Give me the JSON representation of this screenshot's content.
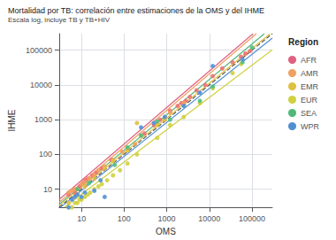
{
  "chart_data": {
    "type": "scatter",
    "title": "Mortalidad por TB: correlación entre estimaciones de la OMS y del IHME",
    "subtitle": "Escala log, incluye TB y TB+HIV",
    "xlabel": "OMS",
    "ylabel": "IHME",
    "log": true,
    "grid": true,
    "legend": "right",
    "legend_title": "Region",
    "xlim": [
      3,
      300000
    ],
    "ylim": [
      3,
      300000
    ],
    "xticks": [
      10,
      100,
      1000,
      10000,
      100000
    ],
    "yticks": [
      10,
      100,
      1000,
      10000,
      100000
    ],
    "series": [
      {
        "type": "line",
        "color": "#555555",
        "line_style": "dashed",
        "x": [
          3,
          300000
        ],
        "values": [
          3,
          300000
        ]
      },
      {
        "name": "AFR",
        "type": "line",
        "color": "#e06080",
        "line_style": "solid",
        "x": [
          3,
          106127.9
        ],
        "values": [
          5.0232,
          300000
        ]
      },
      {
        "name": "AMR",
        "type": "line",
        "color": "#f0a060",
        "line_style": "solid",
        "x": [
          3,
          126479.5
        ],
        "values": [
          4.1781,
          300000
        ]
      },
      {
        "name": "EMR",
        "type": "line",
        "color": "#e0c040",
        "line_style": "solid",
        "x": [
          3,
          267375.3
        ],
        "values": [
          3.3661,
          300000
        ]
      },
      {
        "name": "EUR",
        "type": "line",
        "color": "#d0d040",
        "line_style": "solid",
        "x": [
          3.9724,
          300000
        ],
        "values": [
          3,
          103210.2
        ]
      },
      {
        "name": "SEA",
        "type": "line",
        "color": "#50b878",
        "line_style": "solid",
        "x": [
          3,
          195566.9
        ],
        "values": [
          3.6869,
          300000
        ]
      },
      {
        "name": "WPR",
        "type": "line",
        "color": "#5090d0",
        "line_style": "solid",
        "x": [
          3.2156,
          300000
        ],
        "values": [
          3,
          222627.5
        ]
      },
      {
        "name": "AFR",
        "type": "scatter",
        "color": "#f07070",
        "marker": "circle",
        "x": [
          5,
          7,
          8,
          9,
          11,
          12,
          14,
          18,
          22,
          30,
          50,
          120,
          300,
          500,
          700,
          1200,
          1800,
          2200,
          2800,
          3500,
          5000,
          8000,
          12000,
          20000,
          35000,
          55000,
          70000,
          90000
        ],
        "values": [
          7,
          8,
          10,
          12,
          15,
          18,
          20,
          25,
          30,
          40,
          70,
          150,
          400,
          700,
          1000,
          1800,
          2500,
          3000,
          3500,
          4500,
          7000,
          10000,
          18000,
          30000,
          45000,
          65000,
          80000,
          95000
        ]
      },
      {
        "name": "AMR",
        "type": "scatter",
        "color": "#f0a060",
        "marker": "circle",
        "x": [
          5,
          6,
          7,
          8,
          10,
          12,
          15,
          20,
          25,
          35,
          55,
          90,
          180,
          250,
          600,
          900,
          1200,
          2500
        ],
        "values": [
          8,
          9,
          10,
          10,
          14,
          16,
          20,
          25,
          35,
          45,
          70,
          120,
          200,
          350,
          800,
          1200,
          1600,
          3000
        ]
      },
      {
        "name": "EMR",
        "type": "scatter",
        "color": "#e0c040",
        "marker": "circle",
        "x": [
          5,
          8,
          12,
          20,
          35,
          55,
          120,
          200,
          600,
          900
        ],
        "values": [
          4,
          7,
          12,
          20,
          40,
          65,
          130,
          800,
          700,
          1000
        ]
      },
      {
        "name": "EUR",
        "type": "scatter",
        "color": "#d0d040",
        "marker": "circle",
        "x": [
          5,
          6,
          7,
          8,
          9,
          10,
          12,
          14,
          16,
          20,
          25,
          30,
          40,
          55,
          80,
          120,
          200,
          600,
          1200,
          2500,
          6000,
          12000,
          35000,
          55000
        ],
        "values": [
          3,
          3,
          4,
          4,
          5,
          5,
          6,
          7,
          8,
          10,
          12,
          14,
          18,
          25,
          35,
          55,
          100,
          300,
          700,
          1200,
          3000,
          8000,
          22000,
          40000
        ]
      },
      {
        "name": "SEA",
        "type": "scatter",
        "color": "#50c080",
        "marker": "circle",
        "x": [
          8,
          15,
          60,
          120,
          250,
          600,
          1200,
          6000,
          12000,
          60000,
          100000
        ],
        "values": [
          10,
          15,
          50,
          160,
          350,
          900,
          1000,
          3500,
          9000,
          45000,
          120000
        ]
      },
      {
        "name": "WPR",
        "type": "scatter",
        "color": "#5090d8",
        "marker": "circle",
        "x": [
          5,
          6,
          7,
          8,
          10,
          12,
          20,
          28,
          35,
          250,
          500,
          900,
          2500,
          6000,
          12000,
          60000
        ],
        "values": [
          3,
          5,
          6,
          7,
          6,
          8,
          9,
          18,
          6,
          600,
          800,
          1200,
          2500,
          6000,
          35000,
          55000
        ]
      }
    ]
  }
}
